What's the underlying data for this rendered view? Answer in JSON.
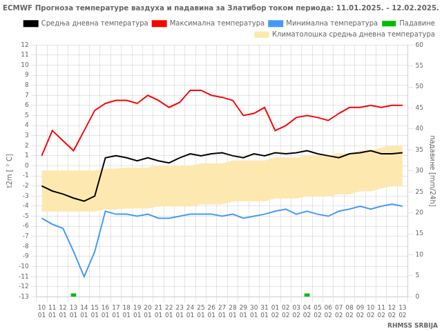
{
  "chart_data": {
    "type": "line",
    "title": "ECMWF Прогноза температуре ваздуха и падавина за Златибор током периода: 11.01.2025. - 12.02.2025.",
    "categories": [
      [
        "10",
        "01"
      ],
      [
        "11",
        "01"
      ],
      [
        "12",
        "01"
      ],
      [
        "13",
        "01"
      ],
      [
        "14",
        "01"
      ],
      [
        "15",
        "01"
      ],
      [
        "16",
        "01"
      ],
      [
        "17",
        "01"
      ],
      [
        "18",
        "01"
      ],
      [
        "19",
        "01"
      ],
      [
        "20",
        "01"
      ],
      [
        "21",
        "01"
      ],
      [
        "22",
        "01"
      ],
      [
        "23",
        "01"
      ],
      [
        "24",
        "01"
      ],
      [
        "25",
        "01"
      ],
      [
        "26",
        "01"
      ],
      [
        "27",
        "01"
      ],
      [
        "28",
        "01"
      ],
      [
        "29",
        "01"
      ],
      [
        "30",
        "01"
      ],
      [
        "31",
        "01"
      ],
      [
        "01",
        "02"
      ],
      [
        "02",
        "02"
      ],
      [
        "03",
        "02"
      ],
      [
        "04",
        "02"
      ],
      [
        "05",
        "02"
      ],
      [
        "06",
        "02"
      ],
      [
        "07",
        "02"
      ],
      [
        "08",
        "02"
      ],
      [
        "09",
        "02"
      ],
      [
        "10",
        "02"
      ],
      [
        "11",
        "02"
      ],
      [
        "12",
        "02"
      ],
      [
        "13",
        "02"
      ]
    ],
    "ylabel": "t2m [ ° C]",
    "y2label": "падавине [mm/24h]",
    "ylim": [
      -13,
      12
    ],
    "yticks": [
      -13,
      -12,
      -11,
      -10,
      -9,
      -8,
      -7,
      -6,
      -5,
      -4,
      -3,
      -2,
      -1,
      0,
      1,
      2,
      3,
      4,
      5,
      6,
      7,
      8,
      9,
      10,
      11,
      12
    ],
    "y2lim": [
      0,
      60
    ],
    "y2ticks": [
      0,
      5,
      10,
      15,
      20,
      25,
      30,
      35,
      40,
      45,
      50,
      55,
      60
    ],
    "grid": true,
    "legend": "upper right",
    "annotations": [
      "RHMSS SRBIJA"
    ],
    "series": [
      {
        "name": "Климатолошка средња дневна температура",
        "type": "area",
        "color": "#fde8b0",
        "upper": [
          -0.5,
          -0.5,
          -0.5,
          -0.5,
          -0.5,
          -0.5,
          -0.3,
          -0.3,
          -0.2,
          -0.2,
          -0.2,
          0.0,
          0.0,
          0.0,
          0.0,
          0.2,
          0.2,
          0.2,
          0.5,
          0.5,
          0.5,
          0.5,
          0.8,
          0.8,
          0.8,
          1.0,
          1.0,
          1.0,
          1.2,
          1.2,
          1.5,
          1.5,
          1.8,
          2.0,
          2.0
        ],
        "lower": [
          -4.5,
          -4.5,
          -4.5,
          -4.5,
          -4.5,
          -4.5,
          -4.3,
          -4.3,
          -4.2,
          -4.2,
          -4.2,
          -4.0,
          -4.0,
          -4.0,
          -4.0,
          -3.8,
          -3.8,
          -3.8,
          -3.5,
          -3.5,
          -3.5,
          -3.5,
          -3.2,
          -3.2,
          -3.2,
          -3.0,
          -3.0,
          -3.0,
          -2.8,
          -2.8,
          -2.5,
          -2.5,
          -2.2,
          -2.0,
          -2.0
        ]
      },
      {
        "name": "Максимална температура",
        "type": "line",
        "color": "#ff0000",
        "values": [
          1.0,
          3.5,
          2.5,
          1.5,
          3.5,
          5.5,
          6.2,
          6.5,
          6.5,
          6.2,
          7.0,
          6.5,
          5.8,
          6.3,
          7.5,
          7.5,
          7.0,
          6.8,
          6.5,
          5.0,
          5.2,
          5.8,
          3.5,
          4.0,
          4.8,
          5.0,
          4.8,
          4.5,
          5.2,
          5.8,
          5.8,
          6.0,
          5.8,
          6.0,
          6.0
        ]
      },
      {
        "name": "Падавине",
        "type": "bar",
        "color": "#00bb00",
        "axis": "y2",
        "values": [
          0.0,
          0.0,
          0.0,
          0.8,
          0.0,
          0.0,
          0.0,
          0.0,
          0.0,
          0.0,
          0.0,
          0.0,
          0.0,
          0.0,
          0.0,
          0.0,
          0.0,
          0.0,
          0.0,
          0.0,
          0.0,
          0.0,
          0.0,
          0.0,
          0.0,
          0.8,
          0.0,
          0.0,
          0.0,
          0.0,
          0.0,
          0.0,
          0.0,
          0.0,
          0.0
        ]
      },
      {
        "name": "Средња дневна температура",
        "type": "line",
        "color": "#000000",
        "values": [
          -2.0,
          -2.5,
          -2.8,
          -3.2,
          -3.5,
          -3.0,
          0.8,
          1.0,
          0.8,
          0.5,
          0.8,
          0.5,
          0.3,
          0.8,
          1.2,
          1.0,
          1.2,
          1.3,
          1.0,
          0.8,
          1.2,
          1.0,
          1.3,
          1.2,
          1.3,
          1.5,
          1.2,
          1.0,
          0.8,
          1.2,
          1.3,
          1.5,
          1.2,
          1.2,
          1.3
        ]
      },
      {
        "name": "Минимална температура",
        "type": "line",
        "color": "#4499ff",
        "values": [
          -5.2,
          -5.8,
          -6.2,
          -8.5,
          -11.0,
          -8.5,
          -4.5,
          -4.8,
          -4.8,
          -5.0,
          -4.8,
          -5.2,
          -5.2,
          -5.0,
          -4.8,
          -4.8,
          -4.8,
          -5.0,
          -4.8,
          -5.2,
          -5.0,
          -4.8,
          -4.5,
          -4.3,
          -4.8,
          -4.5,
          -4.8,
          -5.0,
          -4.5,
          -4.3,
          -4.0,
          -4.3,
          -4.0,
          -3.8,
          -4.0
        ]
      }
    ]
  }
}
